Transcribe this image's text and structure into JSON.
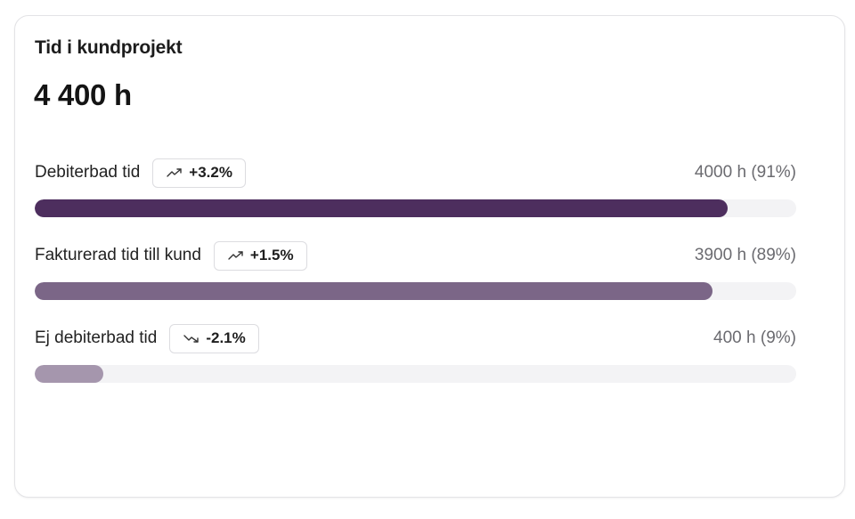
{
  "card": {
    "title": "Tid i kundprojekt",
    "total": "4 400 h"
  },
  "metrics": [
    {
      "label": "Debiterbad tid",
      "change": "+3.2%",
      "trend_icon": "trend-up-icon",
      "value": "4000 h (91%)",
      "fraction": 0.91,
      "color": "#4d2e5e"
    },
    {
      "label": "Fakturerad tid till kund",
      "change": "+1.5%",
      "trend_icon": "trend-up-icon",
      "value": "3900 h (89%)",
      "fraction": 0.89,
      "color": "#7b6687"
    },
    {
      "label": "Ej debiterbad tid",
      "change": "-2.1%",
      "trend_icon": "trend-down-icon",
      "value": "400 h (9%)",
      "fraction": 0.09,
      "color": "#a596ad"
    }
  ]
}
